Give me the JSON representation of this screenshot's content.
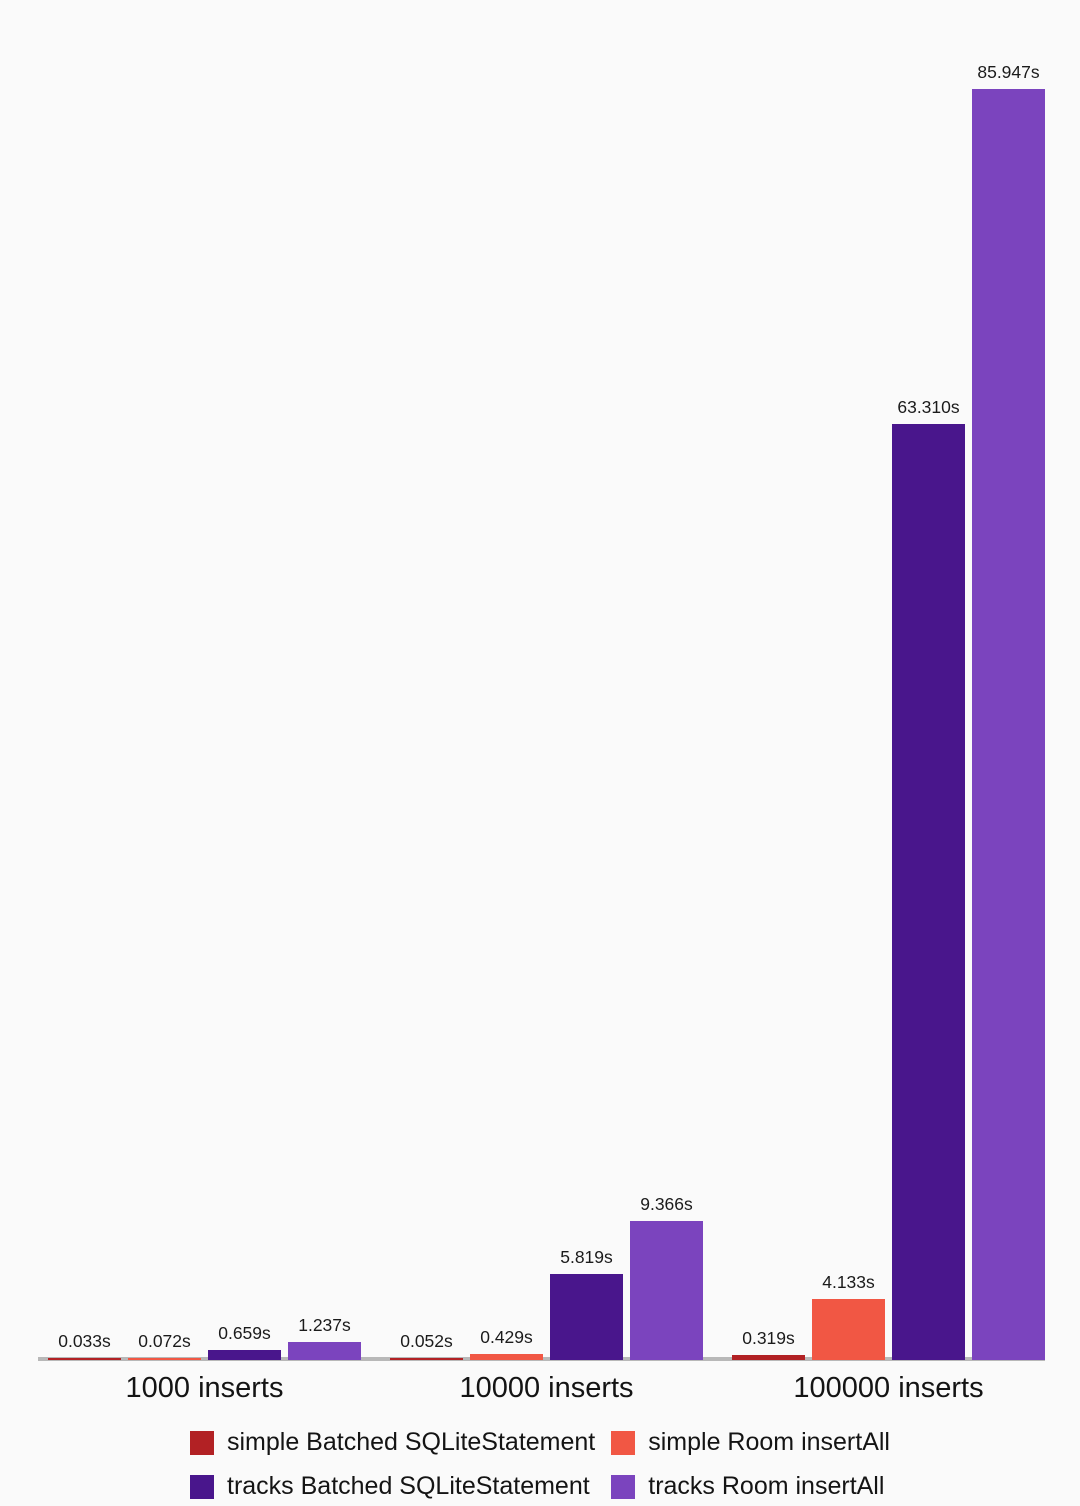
{
  "chart_data": {
    "type": "bar",
    "title": "",
    "xlabel": "",
    "ylabel": "",
    "unit": "s",
    "categories": [
      "1000 inserts",
      "10000 inserts",
      "100000 inserts"
    ],
    "series": [
      {
        "name": "simple Batched SQLiteStatement",
        "color": "#b22124",
        "values": [
          0.033,
          0.052,
          0.319
        ],
        "value_labels": [
          "0.033s",
          "0.052s",
          "0.319s"
        ]
      },
      {
        "name": "simple Room insertAll",
        "color": "#f15744",
        "values": [
          0.072,
          0.429,
          4.133
        ],
        "value_labels": [
          "0.072s",
          "0.429s",
          "4.133s"
        ]
      },
      {
        "name": "tracks Batched SQLiteStatement",
        "color": "#49168c",
        "values": [
          0.659,
          5.819,
          63.31
        ],
        "value_labels": [
          "0.659s",
          "5.819s",
          "63.310s"
        ]
      },
      {
        "name": "tracks Room insertAll",
        "color": "#7b44be",
        "values": [
          1.237,
          9.366,
          85.947
        ],
        "value_labels": [
          "1.237s",
          "9.366s",
          "85.947s"
        ]
      }
    ],
    "ylim": [
      0,
      86
    ],
    "y_axis_visible": false,
    "gridlines": false,
    "legend_position": "bottom",
    "background_color": "#fafafa",
    "baseline_color": "#b8b8b8"
  }
}
